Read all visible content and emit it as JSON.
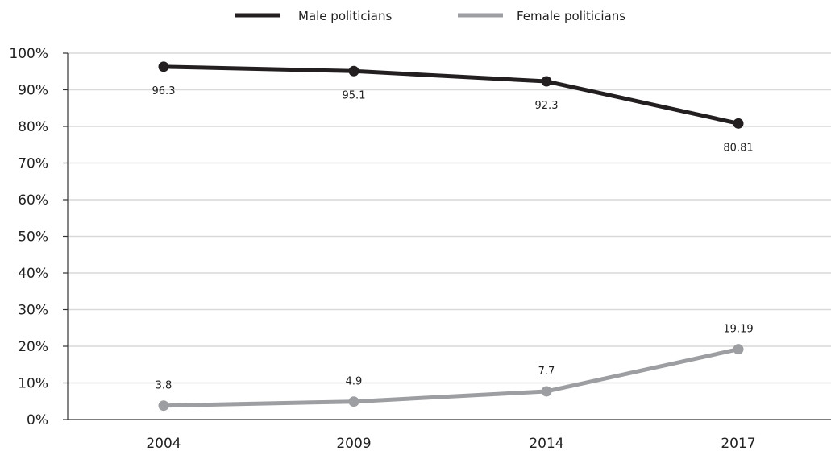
{
  "chart_data": {
    "type": "line",
    "title": "",
    "xlabel": "",
    "ylabel": "",
    "categories": [
      "2004",
      "2009",
      "2014",
      "2017"
    ],
    "ylim": [
      0,
      100
    ],
    "y_ticks": [
      0,
      10,
      20,
      30,
      40,
      50,
      60,
      70,
      80,
      90,
      100
    ],
    "y_tick_labels": [
      "0%",
      "10%",
      "20%",
      "30%",
      "40%",
      "50%",
      "60%",
      "70%",
      "80%",
      "90%",
      "100%"
    ],
    "grid": "horizontal",
    "legend_position": "top-center",
    "series": [
      {
        "name": "Male politicians",
        "values": [
          96.3,
          95.1,
          92.3,
          80.81
        ],
        "labels": [
          "96.3",
          "95.1",
          "92.3",
          "80.81"
        ],
        "label_position": "below",
        "color": "#231f20"
      },
      {
        "name": "Female politicians",
        "values": [
          3.8,
          4.9,
          7.7,
          19.19
        ],
        "labels": [
          "3.8",
          "4.9",
          "7.7",
          "19.19"
        ],
        "label_position": "above",
        "color": "#9c9ea1"
      }
    ]
  },
  "colors": {
    "grid": "#d9d9d9",
    "axis": "#333333",
    "text": "#222222"
  }
}
